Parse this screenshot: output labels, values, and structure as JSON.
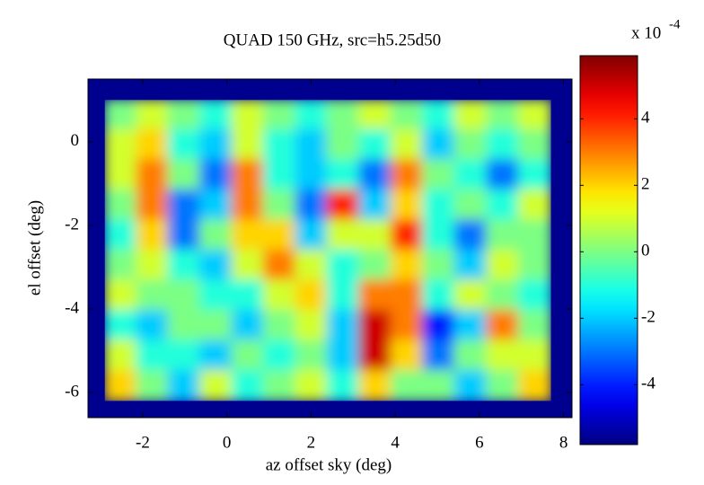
{
  "chart_data": {
    "type": "heatmap",
    "title": "QUAD 150 GHz, src=h5.25d50",
    "x_label": "az offset sky (deg)",
    "y_label": "el offset (deg)",
    "colorbar_label": "x 10",
    "colorbar_exponent": "-4",
    "xlim": [
      -3.3,
      8.2
    ],
    "ylim": [
      -6.6,
      1.5
    ],
    "xticks": [
      -2,
      0,
      2,
      4,
      6,
      8
    ],
    "yticks": [
      0,
      -2,
      -4,
      -6
    ],
    "clim": [
      -5.8,
      5.9
    ],
    "cticks": [
      4,
      2,
      0,
      -2,
      -4
    ],
    "colormap": "jet",
    "x": [
      -2.52,
      -1.76,
      -1.01,
      -0.25,
      0.51,
      1.26,
      2.02,
      2.77,
      3.53,
      4.29,
      5.04,
      5.8,
      6.56,
      7.32
    ],
    "y": [
      0.64,
      -0.08,
      -0.8,
      -1.52,
      -2.24,
      -2.96,
      -3.68,
      -4.4,
      -5.12,
      -5.84
    ],
    "z": [
      [
        0,
        1,
        0,
        -1,
        1,
        0,
        -1,
        0,
        1,
        0,
        -1,
        1,
        0,
        1
      ],
      [
        1,
        2,
        -1,
        -2,
        1,
        -1,
        -2,
        0,
        -1,
        1,
        -2,
        0,
        -1,
        0
      ],
      [
        1,
        3,
        0,
        -3,
        3,
        -1,
        -2,
        -1,
        -3,
        3,
        0,
        -1,
        -3,
        -1
      ],
      [
        0,
        3,
        -3,
        -2,
        3,
        0,
        -3,
        4,
        -2,
        2,
        -1,
        0,
        -1,
        1
      ],
      [
        -1,
        2,
        -3,
        0,
        2,
        2,
        -2,
        1,
        1,
        4,
        -1,
        -3,
        0,
        0
      ],
      [
        0,
        1,
        -1,
        -2,
        1,
        3,
        1,
        -1,
        0,
        2,
        0,
        -2,
        1,
        0
      ],
      [
        1,
        0,
        0,
        -1,
        -1,
        1,
        2,
        -1,
        3,
        3,
        -1,
        1,
        0,
        -1
      ],
      [
        -1,
        -2,
        0,
        0,
        -2,
        0,
        1,
        -2,
        5,
        3,
        -4,
        -2,
        3,
        0
      ],
      [
        1,
        -1,
        -1,
        -2,
        0,
        -1,
        0,
        -2,
        5,
        2,
        -3,
        0,
        1,
        1
      ],
      [
        2,
        0,
        -2,
        1,
        -1,
        0,
        1,
        -1,
        2,
        0,
        0,
        -2,
        0,
        2
      ]
    ]
  }
}
